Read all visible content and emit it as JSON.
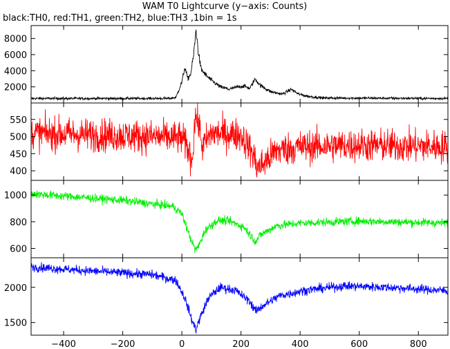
{
  "title": "WAM T0 Lightcurve (y−axis: Counts)",
  "subtitle": "black:TH0, red:TH1, green:TH2, blue:TH3 ,1bin = 1s",
  "chart_data": [
    {
      "type": "line",
      "series": [
        {
          "color": "#000000"
        }
      ],
      "xlim": [
        -510,
        900
      ],
      "ylim": [
        0,
        9600
      ],
      "yticks": [
        2000,
        4000,
        6000,
        8000
      ],
      "ytick_labels": [
        "2000",
        "4000",
        "6000",
        "8000"
      ],
      "profile": [
        [
          -510,
          560
        ],
        [
          -40,
          560
        ],
        [
          -20,
          700
        ],
        [
          0,
          2600
        ],
        [
          10,
          4400
        ],
        [
          20,
          3000
        ],
        [
          30,
          3600
        ],
        [
          40,
          6000
        ],
        [
          48,
          9100
        ],
        [
          55,
          6500
        ],
        [
          65,
          4200
        ],
        [
          80,
          3500
        ],
        [
          100,
          2800
        ],
        [
          130,
          2000
        ],
        [
          160,
          1700
        ],
        [
          190,
          2000
        ],
        [
          210,
          2100
        ],
        [
          230,
          1800
        ],
        [
          248,
          3000
        ],
        [
          265,
          2200
        ],
        [
          300,
          1400
        ],
        [
          340,
          1100
        ],
        [
          370,
          1700
        ],
        [
          395,
          1100
        ],
        [
          430,
          800
        ],
        [
          480,
          620
        ],
        [
          900,
          560
        ]
      ],
      "noise": 90,
      "noise_scale": 0.04
    },
    {
      "type": "line",
      "series": [
        {
          "color": "#ff0000"
        }
      ],
      "xlim": [
        -510,
        900
      ],
      "ylim": [
        372,
        598
      ],
      "yticks": [
        400,
        450,
        500,
        550
      ],
      "ytick_labels": [
        "400",
        "450",
        "500",
        "550"
      ],
      "profile": [
        [
          -510,
          510
        ],
        [
          -100,
          500
        ],
        [
          0,
          495
        ],
        [
          20,
          465
        ],
        [
          35,
          430
        ],
        [
          45,
          560
        ],
        [
          55,
          545
        ],
        [
          70,
          470
        ],
        [
          100,
          510
        ],
        [
          200,
          505
        ],
        [
          240,
          450
        ],
        [
          255,
          410
        ],
        [
          275,
          420
        ],
        [
          320,
          460
        ],
        [
          400,
          470
        ],
        [
          600,
          475
        ],
        [
          900,
          470
        ]
      ],
      "noise": 34,
      "noise_scale": 0
    },
    {
      "type": "line",
      "series": [
        {
          "color": "#00ee00"
        }
      ],
      "xlim": [
        -510,
        900
      ],
      "ylim": [
        530,
        1110
      ],
      "yticks": [
        600,
        800,
        1000
      ],
      "ytick_labels": [
        "600",
        "800",
        "1000"
      ],
      "profile": [
        [
          -510,
          1010
        ],
        [
          -200,
          960
        ],
        [
          -30,
          915
        ],
        [
          0,
          860
        ],
        [
          25,
          700
        ],
        [
          45,
          590
        ],
        [
          55,
          610
        ],
        [
          80,
          740
        ],
        [
          120,
          810
        ],
        [
          160,
          805
        ],
        [
          210,
          760
        ],
        [
          250,
          650
        ],
        [
          265,
          700
        ],
        [
          320,
          770
        ],
        [
          400,
          790
        ],
        [
          600,
          805
        ],
        [
          900,
          790
        ]
      ],
      "noise": 22,
      "noise_scale": 0
    },
    {
      "type": "line",
      "series": [
        {
          "color": "#0000ff"
        }
      ],
      "xlim": [
        -510,
        900
      ],
      "ylim": [
        1320,
        2420
      ],
      "yticks": [
        1500,
        2000
      ],
      "ytick_labels": [
        "1500",
        "2000"
      ],
      "xticks": [
        -400,
        -200,
        0,
        200,
        400,
        600,
        800
      ],
      "xtick_labels": [
        "−400",
        "−200",
        "0",
        "200",
        "400",
        "600",
        "800"
      ],
      "profile": [
        [
          -510,
          2290
        ],
        [
          -300,
          2230
        ],
        [
          -100,
          2180
        ],
        [
          -20,
          2100
        ],
        [
          10,
          1850
        ],
        [
          35,
          1520
        ],
        [
          48,
          1400
        ],
        [
          60,
          1550
        ],
        [
          90,
          1850
        ],
        [
          130,
          2000
        ],
        [
          180,
          1960
        ],
        [
          230,
          1800
        ],
        [
          250,
          1660
        ],
        [
          275,
          1740
        ],
        [
          330,
          1880
        ],
        [
          420,
          1960
        ],
        [
          550,
          2020
        ],
        [
          700,
          2000
        ],
        [
          900,
          1950
        ]
      ],
      "noise": 45,
      "noise_scale": 0
    }
  ]
}
